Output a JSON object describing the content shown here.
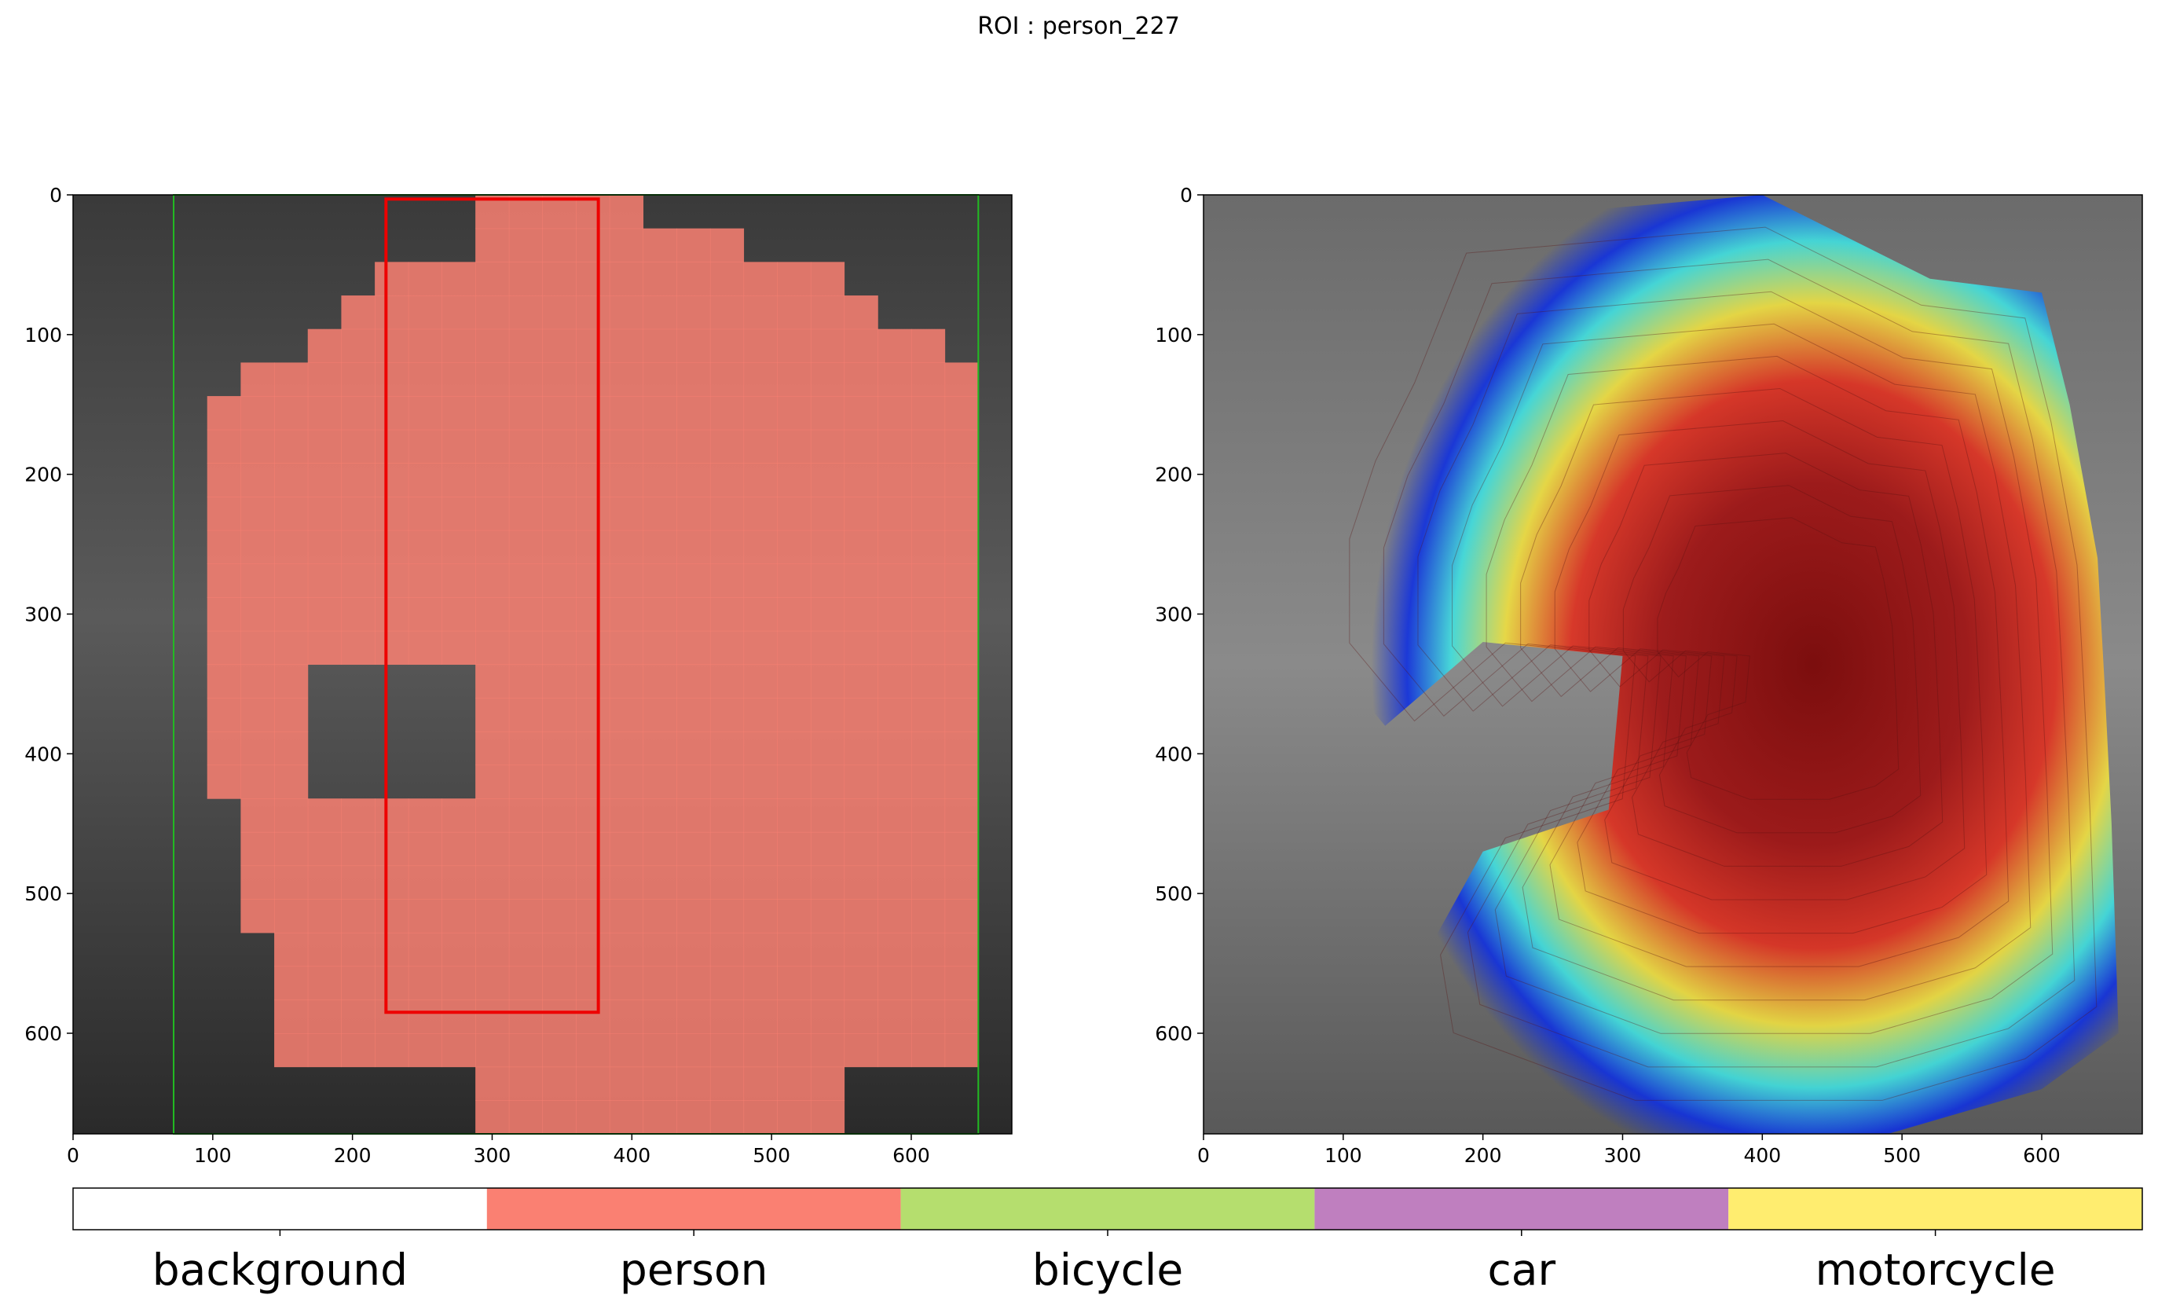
{
  "title": "ROI : person_227",
  "colors": {
    "person": "#fa8072",
    "roi_box": "#ee0000",
    "outer_box": "#22bb22",
    "background_dark": "#1a1a1a"
  },
  "chart_data": [
    {
      "type": "heatmap",
      "panel": "segmentation-overlay",
      "xlim": [
        0,
        672
      ],
      "ylim": [
        672,
        0
      ],
      "x_ticks": [
        0,
        100,
        200,
        300,
        400,
        500,
        600
      ],
      "y_ticks": [
        0,
        100,
        200,
        300,
        400,
        500,
        600
      ],
      "roi_box": {
        "x0": 224,
        "y0": 3,
        "x1": 376,
        "y1": 585
      },
      "outer_box": {
        "x0": 72,
        "y0": 0,
        "x1": 648,
        "y1": 672
      },
      "grid_cell_size": 24
    },
    {
      "type": "heatmap",
      "panel": "attention-heatmap",
      "xlim": [
        0,
        672
      ],
      "ylim": [
        672,
        0
      ],
      "x_ticks": [
        0,
        100,
        200,
        300,
        400,
        500,
        600
      ],
      "y_ticks": [
        0,
        100,
        200,
        300,
        400,
        500,
        600
      ]
    },
    {
      "type": "legend-colorbar",
      "categories": [
        "background",
        "person",
        "bicycle",
        "car",
        "motorcycle"
      ],
      "colors": [
        "#ffffff",
        "#fa8072",
        "#b5de6e",
        "#bf7fbf",
        "#ffed6f"
      ]
    }
  ]
}
